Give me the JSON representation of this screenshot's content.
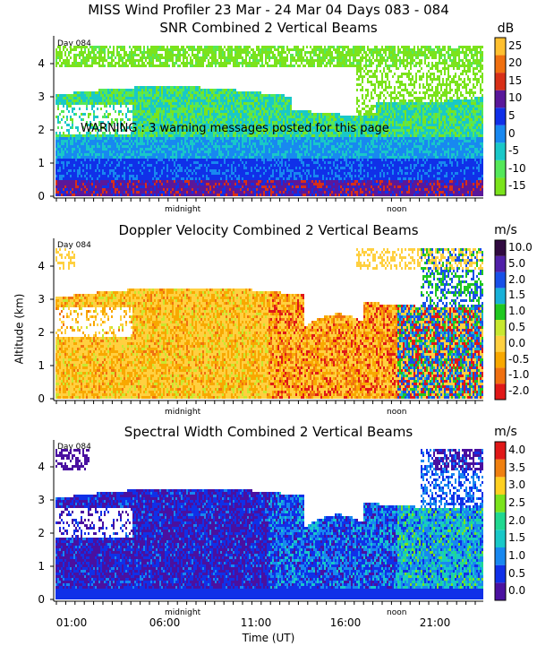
{
  "header": {
    "title": "MISS Wind Profiler  23 Mar - 24 Mar 04 Days 083 - 084"
  },
  "warning": "WARNING : 3 warning messages posted for this page",
  "chart_data": [
    {
      "type": "heatmap",
      "title": "SNR Combined 2 Vertical Beams",
      "unit": "dB",
      "xlabel": "Time (UT)",
      "ylabel": "Altitude (km)",
      "day_label": "Day 084",
      "marks": [
        "midnight",
        "noon"
      ],
      "y_ticks": [
        "0",
        "1",
        "2",
        "3",
        "4"
      ],
      "ylim": [
        0,
        4.7
      ],
      "colorbar": [
        {
          "label": "-15",
          "color": "#7be31c"
        },
        {
          "label": "-10",
          "color": "#54e85a"
        },
        {
          "label": "-5",
          "color": "#19c8c8"
        },
        {
          "label": "0",
          "color": "#1888f0"
        },
        {
          "label": "5",
          "color": "#1030e8"
        },
        {
          "label": "10",
          "color": "#5a189a"
        },
        {
          "label": "15",
          "color": "#d83018"
        },
        {
          "label": "20",
          "color": "#f07010"
        },
        {
          "label": "25",
          "color": "#ffc030"
        }
      ]
    },
    {
      "type": "heatmap",
      "title": "Doppler Velocity Combined 2 Vertical Beams",
      "unit": "m/s",
      "xlabel": "Time (UT)",
      "ylabel": "Altitude (km)",
      "day_label": "Day 084",
      "marks": [
        "midnight",
        "noon"
      ],
      "y_ticks": [
        "0",
        "1",
        "2",
        "3",
        "4"
      ],
      "ylim": [
        0,
        4.7
      ],
      "colorbar": [
        {
          "label": "-2.0",
          "color": "#e01818"
        },
        {
          "label": "-1.0",
          "color": "#f07010"
        },
        {
          "label": "-0.5",
          "color": "#f8a800"
        },
        {
          "label": "0.0",
          "color": "#ffd040"
        },
        {
          "label": "0.5",
          "color": "#c8e830"
        },
        {
          "label": "1.0",
          "color": "#20c820"
        },
        {
          "label": "1.5",
          "color": "#18b0d8"
        },
        {
          "label": "2.0",
          "color": "#1850e8"
        },
        {
          "label": "5.0",
          "color": "#5020a8"
        },
        {
          "label": "10.0",
          "color": "#300a40"
        }
      ]
    },
    {
      "type": "heatmap",
      "title": "Spectral Width Combined 2 Vertical Beams",
      "unit": "m/s",
      "xlabel": "Time (UT)",
      "ylabel": "Altitude (km)",
      "day_label": "Day 084",
      "marks": [
        "midnight",
        "noon"
      ],
      "y_ticks": [
        "0",
        "1",
        "2",
        "3",
        "4"
      ],
      "x_ticks": [
        "01:00",
        "06:00",
        "11:00",
        "16:00",
        "21:00"
      ],
      "ylim": [
        0,
        4.7
      ],
      "colorbar": [
        {
          "label": "0.0",
          "color": "#4a10a0"
        },
        {
          "label": "0.5",
          "color": "#1030e8"
        },
        {
          "label": "1.0",
          "color": "#1888f0"
        },
        {
          "label": "1.5",
          "color": "#19c8c8"
        },
        {
          "label": "2.0",
          "color": "#20d890"
        },
        {
          "label": "2.5",
          "color": "#7be31c"
        },
        {
          "label": "3.0",
          "color": "#ffd020"
        },
        {
          "label": "3.5",
          "color": "#f08010"
        },
        {
          "label": "4.0",
          "color": "#e01818"
        }
      ]
    }
  ]
}
